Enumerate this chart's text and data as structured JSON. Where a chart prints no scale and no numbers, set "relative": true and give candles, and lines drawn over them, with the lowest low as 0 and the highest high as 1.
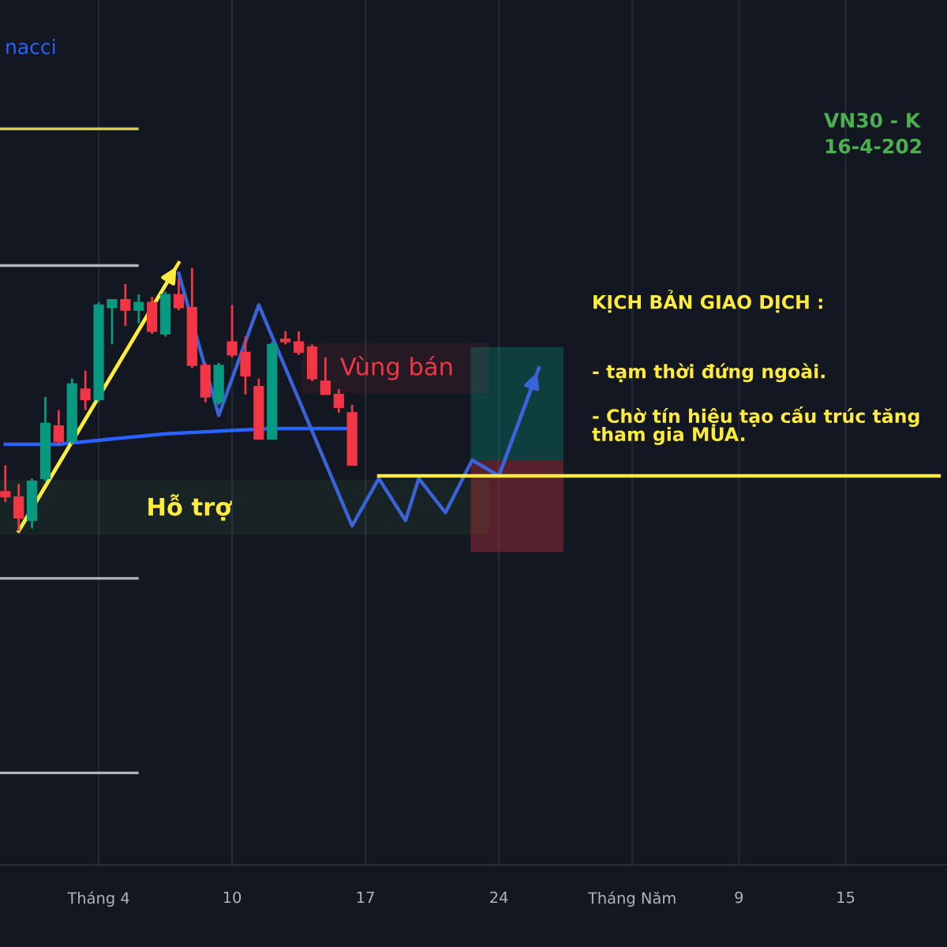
{
  "chart_data": {
    "type": "candlestick",
    "relative": true,
    "categories": [
      null,
      null,
      null,
      null,
      null,
      null,
      null,
      "Tháng 4",
      null,
      null,
      null,
      null,
      null,
      null,
      null,
      null,
      null,
      "10",
      null,
      null,
      null,
      null,
      null,
      null,
      null,
      null,
      null,
      "17",
      null,
      null,
      null,
      null,
      null,
      null,
      null,
      null,
      null,
      "24",
      null,
      null,
      null,
      null,
      null,
      null,
      null,
      null,
      null,
      "Tháng Năm",
      null,
      null,
      null,
      null,
      null,
      null,
      null,
      "9",
      null,
      null,
      null,
      null,
      null,
      null,
      null,
      "15",
      null,
      null,
      null,
      null,
      null,
      null,
      null
    ],
    "ohlc": [
      [
        0.15,
        0.25,
        0.11,
        0.13
      ],
      [
        0.13,
        0.18,
        0,
        0.05
      ],
      [
        0.04,
        0.2,
        0.01,
        0.19
      ],
      [
        0.2,
        0.51,
        0.19,
        0.41
      ],
      [
        0.4,
        0.46,
        0.33,
        0.34
      ],
      [
        0.34,
        0.58,
        0.33,
        0.56
      ],
      [
        0.54,
        0.61,
        0.46,
        0.5
      ],
      [
        0.5,
        0.87,
        0.49,
        0.86
      ],
      [
        0.85,
        0.88,
        0.71,
        0.88
      ],
      [
        0.88,
        0.94,
        0.78,
        0.84
      ],
      [
        0.84,
        0.9,
        0.79,
        0.87
      ],
      [
        0.87,
        0.89,
        0.75,
        0.76
      ],
      [
        0.75,
        0.91,
        0.74,
        0.9
      ],
      [
        0.9,
        0.96,
        0.84,
        0.85
      ],
      [
        0.85,
        1,
        0.62,
        0.63
      ],
      [
        0.63,
        0.64,
        0.49,
        0.51
      ],
      [
        0.49,
        0.64,
        0.48,
        0.63
      ],
      [
        0.72,
        0.86,
        0.66,
        0.67
      ],
      [
        0.68,
        0.74,
        0.52,
        0.59
      ],
      [
        0.55,
        0.58,
        0.35,
        0.35
      ],
      [
        0.35,
        0.72,
        0.35,
        0.71
      ],
      [
        0.73,
        0.76,
        0.71,
        0.72
      ],
      [
        0.72,
        0.76,
        0.67,
        0.68
      ],
      [
        0.7,
        0.71,
        0.57,
        0.58
      ],
      [
        0.57,
        0.66,
        0.52,
        0.52
      ],
      [
        0.52,
        0.54,
        0.45,
        0.47
      ],
      [
        0.45,
        0.48,
        0.25,
        0.25
      ],
      null,
      null,
      null,
      null,
      null,
      null,
      null,
      null,
      null,
      null,
      null,
      null,
      null,
      null,
      null,
      null,
      null,
      null,
      null,
      null,
      null,
      null,
      null,
      null,
      null,
      null,
      null,
      null,
      null,
      null,
      null,
      null,
      null,
      null,
      null,
      null,
      null,
      null,
      null,
      null,
      null,
      null,
      null,
      null
    ],
    "colors": [
      "#f23645",
      "#f23645",
      "#089981",
      "#089981",
      "#f23645",
      "#089981",
      "#f23645",
      "#089981",
      "#089981",
      "#f23645",
      "#089981",
      "#f23645",
      "#089981",
      "#f23645",
      "#f23645",
      "#f23645",
      "#089981",
      "#f23645",
      "#f23645",
      "#f23645",
      "#089981",
      "#f23645",
      "#f23645",
      "#f23645",
      "#f23645",
      "#f23645",
      "#f23645",
      null,
      null,
      null,
      null,
      null,
      null,
      null,
      null,
      null,
      null,
      null,
      null,
      null,
      null,
      null,
      null,
      null,
      null,
      null,
      null,
      null,
      null,
      null,
      null,
      null,
      null,
      null,
      null,
      null,
      null,
      null,
      null,
      null,
      null,
      null,
      null,
      null,
      null,
      null,
      null,
      null,
      null,
      null,
      null
    ],
    "series": [
      {
        "type": "line",
        "color": "#2962ff",
        "values": [
          0.33,
          null,
          null,
          null,
          0.33,
          null,
          null,
          null,
          0.35,
          null,
          null,
          null,
          0.37,
          null,
          null,
          null,
          0.38,
          null,
          null,
          null,
          0.39,
          null,
          null,
          null,
          null,
          null,
          0.39,
          null,
          null,
          null,
          null,
          null,
          null,
          null,
          null,
          null,
          null,
          null,
          null,
          null,
          null,
          null,
          null,
          null,
          null,
          null,
          null,
          null,
          null,
          null,
          null,
          null,
          null,
          null,
          null,
          null,
          null,
          null,
          null,
          null,
          null,
          null,
          null,
          null,
          null,
          null,
          null,
          null,
          null,
          null,
          null
        ]
      },
      {
        "type": "line",
        "color": "#ffeb3b",
        "values": [
          null,
          0,
          null,
          null,
          null,
          null,
          null,
          null,
          null,
          null,
          null,
          null,
          null,
          1.02,
          null,
          null,
          null,
          null,
          null,
          null,
          null,
          null,
          null,
          null,
          null,
          null,
          null,
          null,
          null,
          null,
          null,
          null,
          null,
          null,
          null,
          null,
          null,
          null,
          null,
          null,
          null,
          null,
          null,
          null,
          null,
          null,
          null,
          null,
          null,
          null,
          null,
          null,
          null,
          null,
          null,
          null,
          null,
          null,
          null,
          null,
          null,
          null,
          null,
          null,
          null,
          null,
          null,
          null,
          null,
          null,
          null
        ]
      },
      {
        "type": "line",
        "color": "#3a63d9",
        "values": [
          null,
          null,
          null,
          null,
          null,
          null,
          null,
          null,
          null,
          null,
          null,
          null,
          null,
          0.98,
          null,
          null,
          0.44,
          null,
          null,
          0.86,
          null,
          null,
          null,
          null,
          null,
          null,
          0.02,
          null,
          0.2,
          null,
          0.04,
          0.2,
          null,
          0.07,
          null,
          0.27,
          null,
          0.21,
          null,
          null,
          0.62,
          null,
          null,
          null,
          null,
          null,
          null,
          null,
          null,
          null,
          null,
          null,
          null,
          null,
          null,
          null,
          null,
          null,
          null,
          null,
          null,
          null,
          null,
          null,
          null,
          null,
          null,
          null,
          null,
          null,
          null
        ]
      },
      {
        "type": "line",
        "color": "#ffeb3b",
        "values": [
          null,
          null,
          null,
          null,
          null,
          null,
          null,
          null,
          null,
          null,
          null,
          null,
          null,
          null,
          null,
          null,
          null,
          null,
          null,
          null,
          null,
          null,
          null,
          null,
          null,
          null,
          null,
          null,
          0.21,
          null,
          null,
          null,
          null,
          null,
          null,
          null,
          null,
          null,
          null,
          null,
          null,
          null,
          null,
          null,
          null,
          null,
          null,
          null,
          null,
          null,
          null,
          null,
          null,
          null,
          null,
          null,
          null,
          null,
          null,
          null,
          null,
          null,
          null,
          null,
          null,
          null,
          null,
          null,
          null,
          null,
          0.21
        ]
      }
    ],
    "ref_lines": [
      {
        "axis": "y",
        "value": 1.53,
        "color": "#d4c95a"
      },
      {
        "axis": "y",
        "value": 1.01,
        "color": "#b2b5be"
      },
      {
        "axis": "y",
        "value": -0.18,
        "color": "#b2b5be"
      },
      {
        "axis": "y",
        "value": -0.92,
        "color": "#b2b5be"
      }
    ],
    "bands": [
      {
        "axis": "y",
        "from": -0.01,
        "to": 0.19,
        "label": "Hỗ trợ",
        "color": "#4caf50"
      },
      {
        "axis": "y",
        "from": 0.53,
        "to": 0.71,
        "label": "Vùng bán",
        "color": "#f23645"
      },
      {
        "axis": "y",
        "from": 0.27,
        "to": 0.7,
        "color": "#089981"
      },
      {
        "axis": "y",
        "from": -0.08,
        "to": 0.27,
        "color": "#f23645"
      }
    ],
    "annotations": [
      "nacci",
      "VN30 - K",
      "16-4-202",
      "KỊCH BẢN GIAO DỊCH :",
      "- tạm thời đứng ngoài.",
      "- Chờ tín hiệu tạo cấu trúc tăng\ntham gia MUA."
    ],
    "grid": "x",
    "legend": false
  }
}
